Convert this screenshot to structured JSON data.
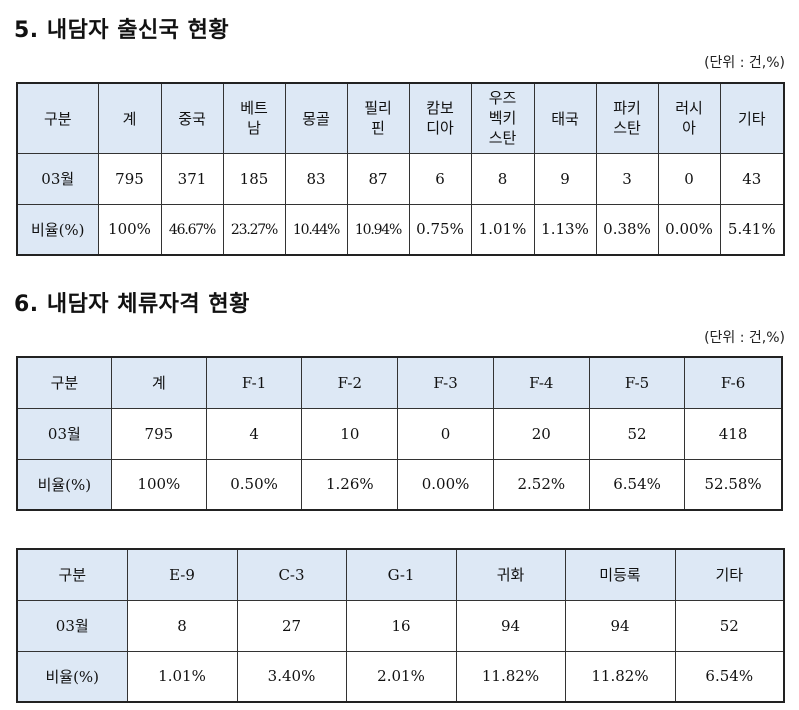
{
  "section1": {
    "title": "5.  내담자  출신국  현황",
    "unit": "(단위 : 건,%)",
    "headers": [
      "구분",
      "계",
      "중국",
      "베트\n남",
      "몽골",
      "필리\n핀",
      "캄보\n디아",
      "우즈\n벡키\n스탄",
      "태국",
      "파키\n스탄",
      "러시\n아",
      "기타"
    ],
    "count_row": [
      "03월",
      "795",
      "371",
      "185",
      "83",
      "87",
      "6",
      "8",
      "9",
      "3",
      "0",
      "43"
    ],
    "pct_row": [
      "비율(%)",
      "100%",
      "46.67%",
      "23.27%",
      "10.44%",
      "10.94%",
      "0.75%",
      "1.01%",
      "1.13%",
      "0.38%",
      "0.00%",
      "5.41%"
    ]
  },
  "section2": {
    "title": "6.  내담자  체류자격  현황",
    "unit": "(단위 : 건,%)",
    "headers": [
      "구분",
      "계",
      "F-1",
      "F-2",
      "F-3",
      "F-4",
      "F-5",
      "F-6"
    ],
    "count_row": [
      "03월",
      "795",
      "4",
      "10",
      "0",
      "20",
      "52",
      "418"
    ],
    "pct_row": [
      "비율(%)",
      "100%",
      "0.50%",
      "1.26%",
      "0.00%",
      "2.52%",
      "6.54%",
      "52.58%"
    ]
  },
  "section3": {
    "headers": [
      "구분",
      "E-9",
      "C-3",
      "G-1",
      "귀화",
      "미등록",
      "기타"
    ],
    "count_row": [
      "03월",
      "8",
      "27",
      "16",
      "94",
      "94",
      "52"
    ],
    "pct_row": [
      "비율(%)",
      "1.01%",
      "3.40%",
      "2.01%",
      "11.82%",
      "11.82%",
      "6.54%"
    ]
  }
}
